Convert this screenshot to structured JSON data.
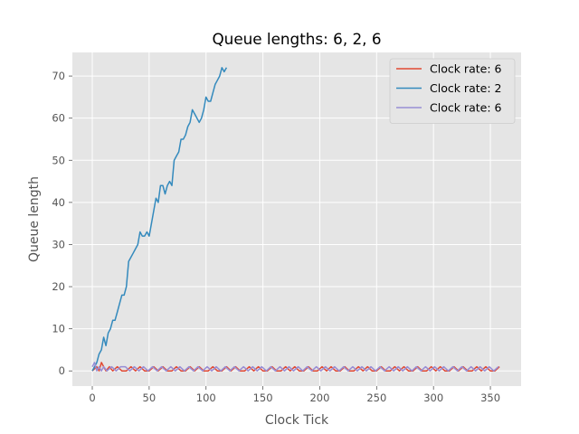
{
  "chart_data": {
    "type": "line",
    "title": "Queue lengths: 6, 2, 6",
    "xlabel": "Clock Tick",
    "ylabel": "Queue length",
    "xlim": [
      -17.5,
      377
    ],
    "ylim": [
      -3.6,
      75.6
    ],
    "xticks": [
      0,
      50,
      100,
      150,
      200,
      250,
      300,
      350
    ],
    "yticks": [
      0,
      10,
      20,
      30,
      40,
      50,
      60,
      70
    ],
    "grid": true,
    "legend_position": "top-right",
    "background_color": "#e5e5e5",
    "series": [
      {
        "name": "Clock rate: 6",
        "color": "#e24a33",
        "x": [
          0,
          4,
          6,
          8,
          10,
          12,
          15,
          18,
          22,
          26,
          30,
          34,
          38,
          42,
          46,
          50,
          54,
          58,
          62,
          66,
          70,
          74,
          78,
          82,
          86,
          90,
          94,
          98,
          102,
          106,
          110,
          114,
          118,
          122,
          126,
          130,
          134,
          138,
          142,
          146,
          150,
          154,
          158,
          162,
          166,
          170,
          174,
          178,
          182,
          186,
          190,
          194,
          198,
          202,
          206,
          210,
          214,
          218,
          222,
          226,
          230,
          234,
          238,
          242,
          246,
          250,
          254,
          258,
          262,
          266,
          270,
          274,
          278,
          282,
          286,
          290,
          294,
          298,
          302,
          306,
          310,
          314,
          318,
          322,
          326,
          330,
          334,
          338,
          342,
          346,
          350,
          354,
          358
        ],
        "values": [
          0,
          1,
          0,
          2,
          1,
          0,
          1,
          0,
          1,
          0,
          0,
          1,
          0,
          1,
          0,
          0,
          1,
          0,
          1,
          0,
          0,
          1,
          0,
          0,
          1,
          0,
          1,
          0,
          0,
          1,
          0,
          0,
          1,
          0,
          1,
          0,
          0,
          1,
          0,
          1,
          0,
          0,
          1,
          0,
          0,
          1,
          0,
          1,
          0,
          0,
          1,
          0,
          0,
          1,
          0,
          1,
          0,
          0,
          1,
          0,
          0,
          1,
          0,
          1,
          0,
          0,
          1,
          0,
          0,
          1,
          0,
          1,
          0,
          0,
          1,
          0,
          0,
          1,
          0,
          1,
          0,
          0,
          1,
          0,
          1,
          0,
          0,
          1,
          0,
          1,
          0,
          0,
          1
        ]
      },
      {
        "name": "Clock rate: 2",
        "color": "#348abd",
        "x": [
          0,
          2,
          4,
          6,
          8,
          10,
          12,
          14,
          16,
          18,
          20,
          22,
          24,
          26,
          28,
          30,
          32,
          34,
          36,
          38,
          40,
          42,
          44,
          46,
          48,
          50,
          52,
          54,
          56,
          58,
          60,
          62,
          64,
          66,
          68,
          70,
          72,
          74,
          76,
          78,
          80,
          82,
          84,
          86,
          88,
          90,
          92,
          94,
          96,
          98,
          100,
          102,
          104,
          106,
          108,
          110,
          112,
          114,
          116,
          118
        ],
        "values": [
          0,
          1,
          2,
          4,
          5,
          8,
          6,
          9,
          10,
          12,
          12,
          14,
          16,
          18,
          18,
          20,
          26,
          27,
          28,
          29,
          30,
          33,
          32,
          32,
          33,
          32,
          35,
          38,
          41,
          40,
          44,
          44,
          42,
          44,
          45,
          44,
          50,
          51,
          52,
          55,
          55,
          56,
          58,
          59,
          62,
          61,
          60,
          59,
          60,
          62,
          65,
          64,
          64,
          66,
          68,
          69,
          70,
          72,
          71,
          72
        ]
      },
      {
        "name": "Clock rate: 6",
        "color": "#988ed5",
        "x": [
          0,
          2,
          4,
          6,
          8,
          10,
          13,
          17,
          21,
          25,
          29,
          33,
          37,
          41,
          45,
          49,
          53,
          57,
          61,
          65,
          69,
          73,
          77,
          81,
          85,
          89,
          93,
          97,
          101,
          105,
          109,
          113,
          117,
          121,
          125,
          129,
          133,
          137,
          141,
          145,
          149,
          153,
          157,
          161,
          165,
          169,
          173,
          177,
          181,
          185,
          189,
          193,
          197,
          201,
          205,
          209,
          213,
          217,
          221,
          225,
          229,
          233,
          237,
          241,
          245,
          249,
          253,
          257,
          261,
          265,
          269,
          273,
          277,
          281,
          285,
          289,
          293,
          297,
          301,
          305,
          309,
          313,
          317,
          321,
          325,
          329,
          333,
          337,
          341,
          345,
          349,
          353,
          357
        ],
        "values": [
          1,
          2,
          0,
          1,
          0,
          1,
          0,
          1,
          0,
          1,
          1,
          0,
          1,
          0,
          1,
          0,
          1,
          0,
          1,
          0,
          1,
          0,
          1,
          0,
          1,
          0,
          1,
          0,
          1,
          0,
          1,
          0,
          1,
          0,
          1,
          0,
          1,
          0,
          1,
          0,
          1,
          0,
          1,
          0,
          1,
          0,
          1,
          0,
          1,
          0,
          1,
          0,
          1,
          0,
          1,
          0,
          1,
          0,
          1,
          0,
          1,
          0,
          1,
          0,
          1,
          0,
          1,
          0,
          1,
          0,
          1,
          0,
          1,
          0,
          1,
          0,
          1,
          0,
          1,
          0,
          1,
          0,
          1,
          0,
          1,
          0,
          1,
          0,
          1,
          0,
          1,
          0,
          1
        ]
      }
    ]
  }
}
